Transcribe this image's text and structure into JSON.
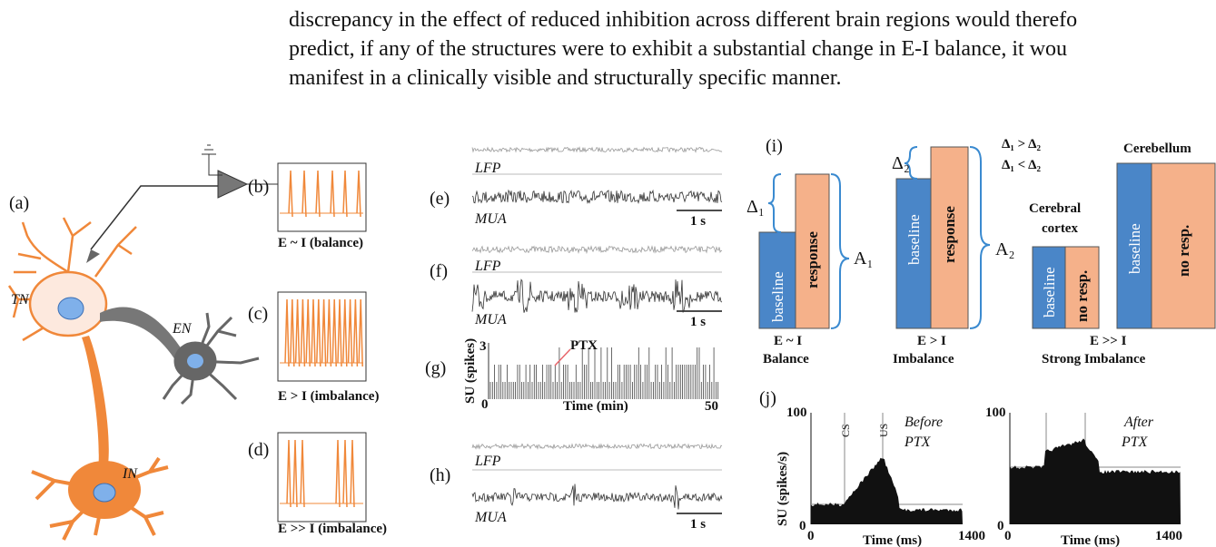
{
  "paragraph": {
    "lines": [
      "discrepancy in the effect of reduced inhibition across different brain regions would therefo",
      "predict, if any of the structures were to exhibit a substantial change in E-I balance, it wou",
      "manifest in a clinically visible and structurally specific manner."
    ]
  },
  "figure": {
    "panel_a": {
      "label": "(a)",
      "cells": [
        "TN",
        "EN",
        "IN"
      ]
    },
    "panel_b": {
      "label": "(b)",
      "caption": "E ~ I (balance)"
    },
    "panel_c": {
      "label": "(c)",
      "caption": "E > I (imbalance)"
    },
    "panel_d": {
      "label": "(d)",
      "caption": "E >> I (imbalance)"
    },
    "panel_e": {
      "label": "(e)",
      "traces": [
        "LFP",
        "MUA"
      ],
      "scale": "1 s"
    },
    "panel_f": {
      "label": "(f)",
      "traces": [
        "LFP",
        "MUA"
      ],
      "scale": "1 s"
    },
    "panel_g": {
      "label": "(g)",
      "y_label": "SU (spikes)",
      "y_top": "3",
      "x_start": "0",
      "x_label": "Time (min)",
      "x_end": "50",
      "annotation": "PTX"
    },
    "panel_h": {
      "label": "(h)",
      "traces": [
        "LFP",
        "MUA"
      ],
      "scale": "1 s"
    },
    "panel_i": {
      "label": "(i)",
      "bar_baseline": "baseline",
      "bar_response": "response",
      "bar_no_response": "no resp.",
      "delta_1": "Δ₁",
      "delta_2": "Δ₂",
      "amp_1": "A₁",
      "amp_2": "A₂",
      "relation_1": "Δ₁ > Δ₂",
      "relation_2": "Δ₁ < Δ₂",
      "group_1": [
        "E ~ I",
        "Balance"
      ],
      "group_2": [
        "E > I",
        "Imbalance"
      ],
      "cortex": [
        "Cerebral",
        "cortex"
      ],
      "cerebellum": "Cerebellum",
      "group_3": [
        "E >> I",
        "Strong Imbalance"
      ]
    },
    "panel_j": {
      "label": "(j)",
      "y_label": "SU (spikes/s)",
      "y_top": "100",
      "y_bottom": "0",
      "x_start": "0",
      "x_label": "Time (ms)",
      "x_end": "1400",
      "cs": "CS",
      "us": "US",
      "before": [
        "Before",
        "PTX"
      ],
      "after": [
        "After",
        "PTX"
      ]
    }
  }
}
